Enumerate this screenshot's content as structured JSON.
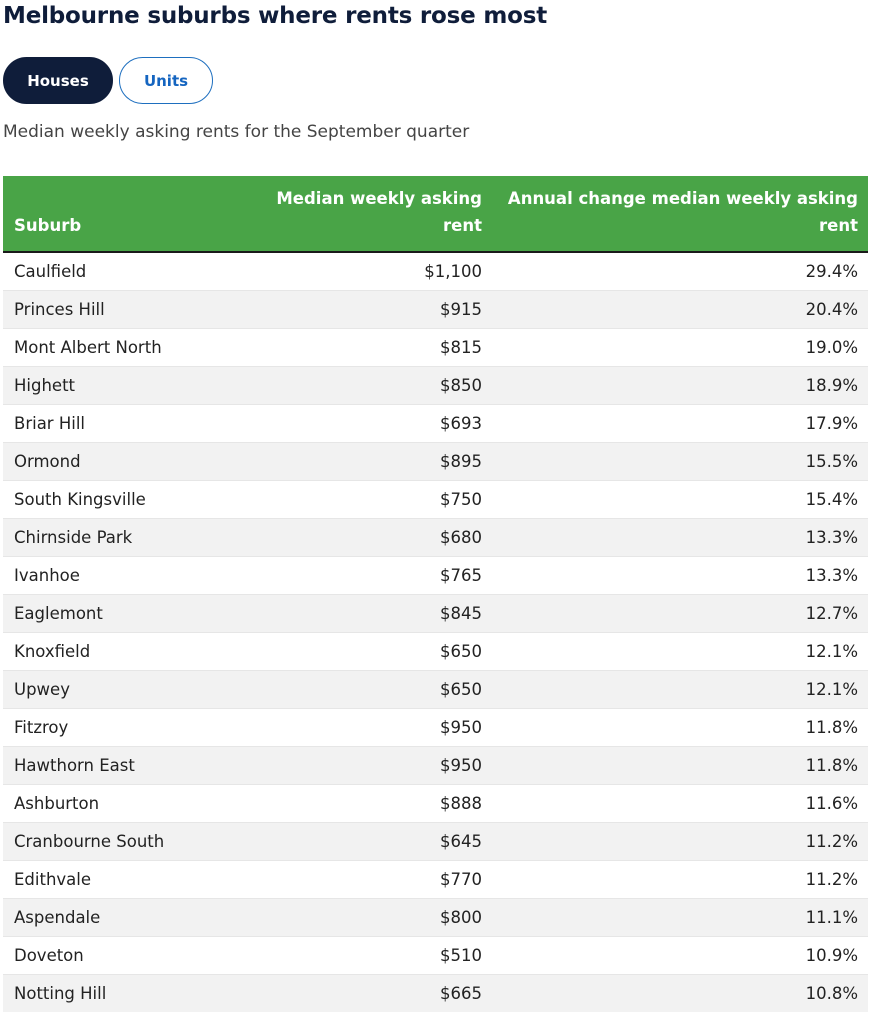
{
  "title": "Melbourne suburbs where rents rose most",
  "toggles": {
    "houses": "Houses",
    "units": "Units",
    "selected": "Houses"
  },
  "subtitle": "Median weekly asking rents for the September quarter",
  "colors": {
    "header_bg": "#49a447",
    "title": "#0f1d3a",
    "toggle_active": "#0f1d3a",
    "toggle_inactive_text": "#1565c0"
  },
  "chart_data": {
    "type": "table",
    "columns": [
      "Suburb",
      "Median weekly asking rent",
      "Annual change median weekly asking rent"
    ],
    "rows": [
      [
        "Caulfield",
        "$1,100",
        "29.4%"
      ],
      [
        "Princes Hill",
        "$915",
        "20.4%"
      ],
      [
        "Mont Albert North",
        "$815",
        "19.0%"
      ],
      [
        "Highett",
        "$850",
        "18.9%"
      ],
      [
        "Briar Hill",
        "$693",
        "17.9%"
      ],
      [
        "Ormond",
        "$895",
        "15.5%"
      ],
      [
        "South Kingsville",
        "$750",
        "15.4%"
      ],
      [
        "Chirnside Park",
        "$680",
        "13.3%"
      ],
      [
        "Ivanhoe",
        "$765",
        "13.3%"
      ],
      [
        "Eaglemont",
        "$845",
        "12.7%"
      ],
      [
        "Knoxfield",
        "$650",
        "12.1%"
      ],
      [
        "Upwey",
        "$650",
        "12.1%"
      ],
      [
        "Fitzroy",
        "$950",
        "11.8%"
      ],
      [
        "Hawthorn East",
        "$950",
        "11.8%"
      ],
      [
        "Ashburton",
        "$888",
        "11.6%"
      ],
      [
        "Cranbourne South",
        "$645",
        "11.2%"
      ],
      [
        "Edithvale",
        "$770",
        "11.2%"
      ],
      [
        "Aspendale",
        "$800",
        "11.1%"
      ],
      [
        "Doveton",
        "$510",
        "10.9%"
      ],
      [
        "Notting Hill",
        "$665",
        "10.8%"
      ]
    ]
  }
}
